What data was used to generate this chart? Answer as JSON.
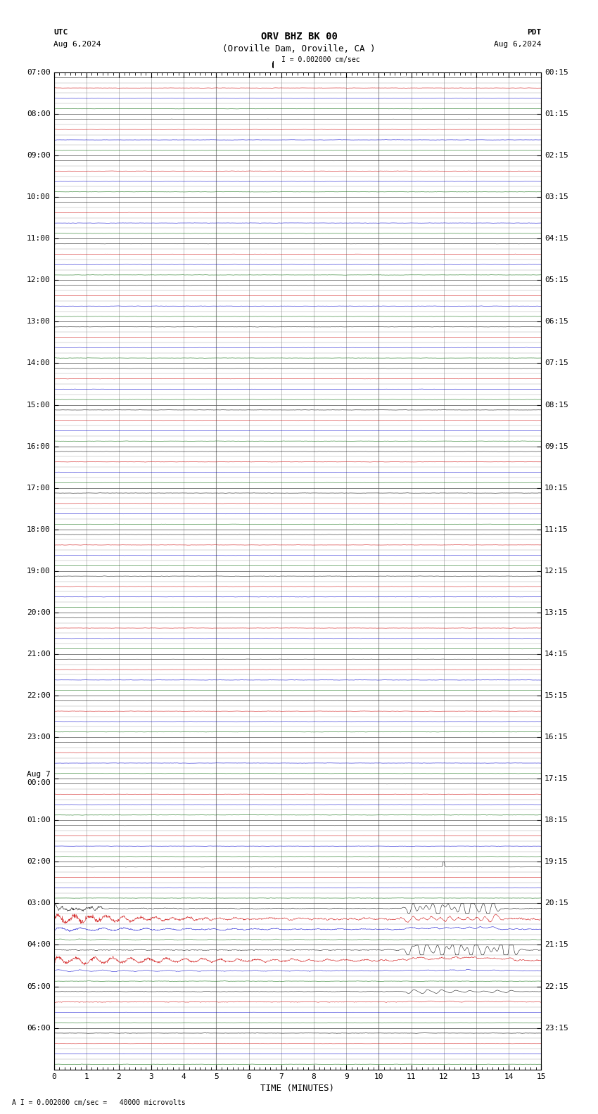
{
  "title_line1": "ORV BHZ BK 00",
  "title_line2": "(Oroville Dam, Oroville, CA )",
  "scale_label": "I = 0.002000 cm/sec",
  "utc_label": "UTC",
  "pdt_label": "PDT",
  "date_left": "Aug 6,2024",
  "date_right": "Aug 6,2024",
  "bottom_label": "A I = 0.002000 cm/sec =   40000 microvolts",
  "xlabel": "TIME (MINUTES)",
  "xmin": 0,
  "xmax": 15,
  "background_color": "#ffffff",
  "title_fontsize": 10,
  "label_fontsize": 9,
  "tick_fontsize": 8,
  "utc_times": [
    "07:00",
    "08:00",
    "09:00",
    "10:00",
    "11:00",
    "12:00",
    "13:00",
    "14:00",
    "15:00",
    "16:00",
    "17:00",
    "18:00",
    "19:00",
    "20:00",
    "21:00",
    "22:00",
    "23:00",
    "Aug 7\n00:00",
    "01:00",
    "02:00",
    "03:00",
    "04:00",
    "05:00",
    "06:00"
  ],
  "pdt_times": [
    "00:15",
    "01:15",
    "02:15",
    "03:15",
    "04:15",
    "05:15",
    "06:15",
    "07:15",
    "08:15",
    "09:15",
    "10:15",
    "11:15",
    "12:15",
    "13:15",
    "14:15",
    "15:15",
    "16:15",
    "17:15",
    "18:15",
    "19:15",
    "20:15",
    "21:15",
    "22:15",
    "23:15"
  ],
  "row_colors": [
    "#000000",
    "#cc0000",
    "#0000cc",
    "#006600"
  ],
  "num_hours": 24,
  "rows_per_hour": 4
}
